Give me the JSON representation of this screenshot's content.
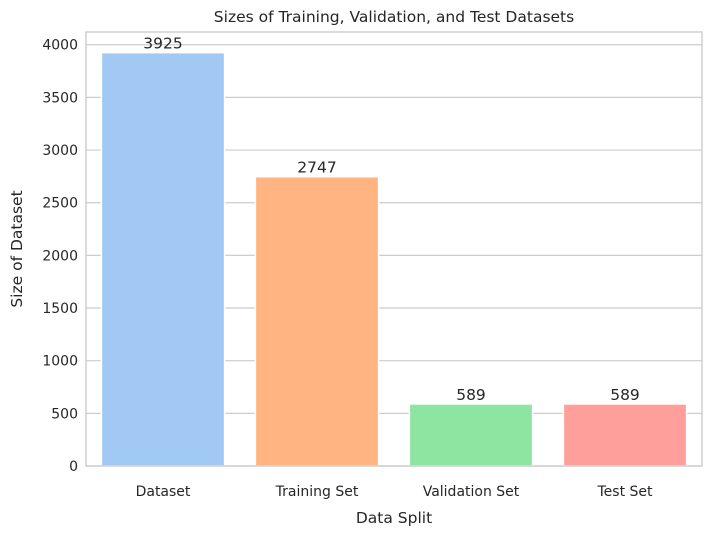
{
  "chart_data": {
    "type": "bar",
    "title": "Sizes of Training, Validation, and Test Datasets",
    "xlabel": "Data Split",
    "ylabel": "Size of Dataset",
    "categories": [
      "Dataset",
      "Training Set",
      "Validation Set",
      "Test Set"
    ],
    "values": [
      3925,
      2747,
      589,
      589
    ],
    "data_labels": [
      "3925",
      "2747",
      "589",
      "589"
    ],
    "colors": [
      "#a1c9f4",
      "#ffb482",
      "#8de5a1",
      "#ff9f9b"
    ],
    "ylim": [
      0,
      4121
    ],
    "yticks": [
      0,
      500,
      1000,
      1500,
      2000,
      2500,
      3000,
      3500,
      4000
    ],
    "grid": "horizontal",
    "style": "whitegrid"
  }
}
